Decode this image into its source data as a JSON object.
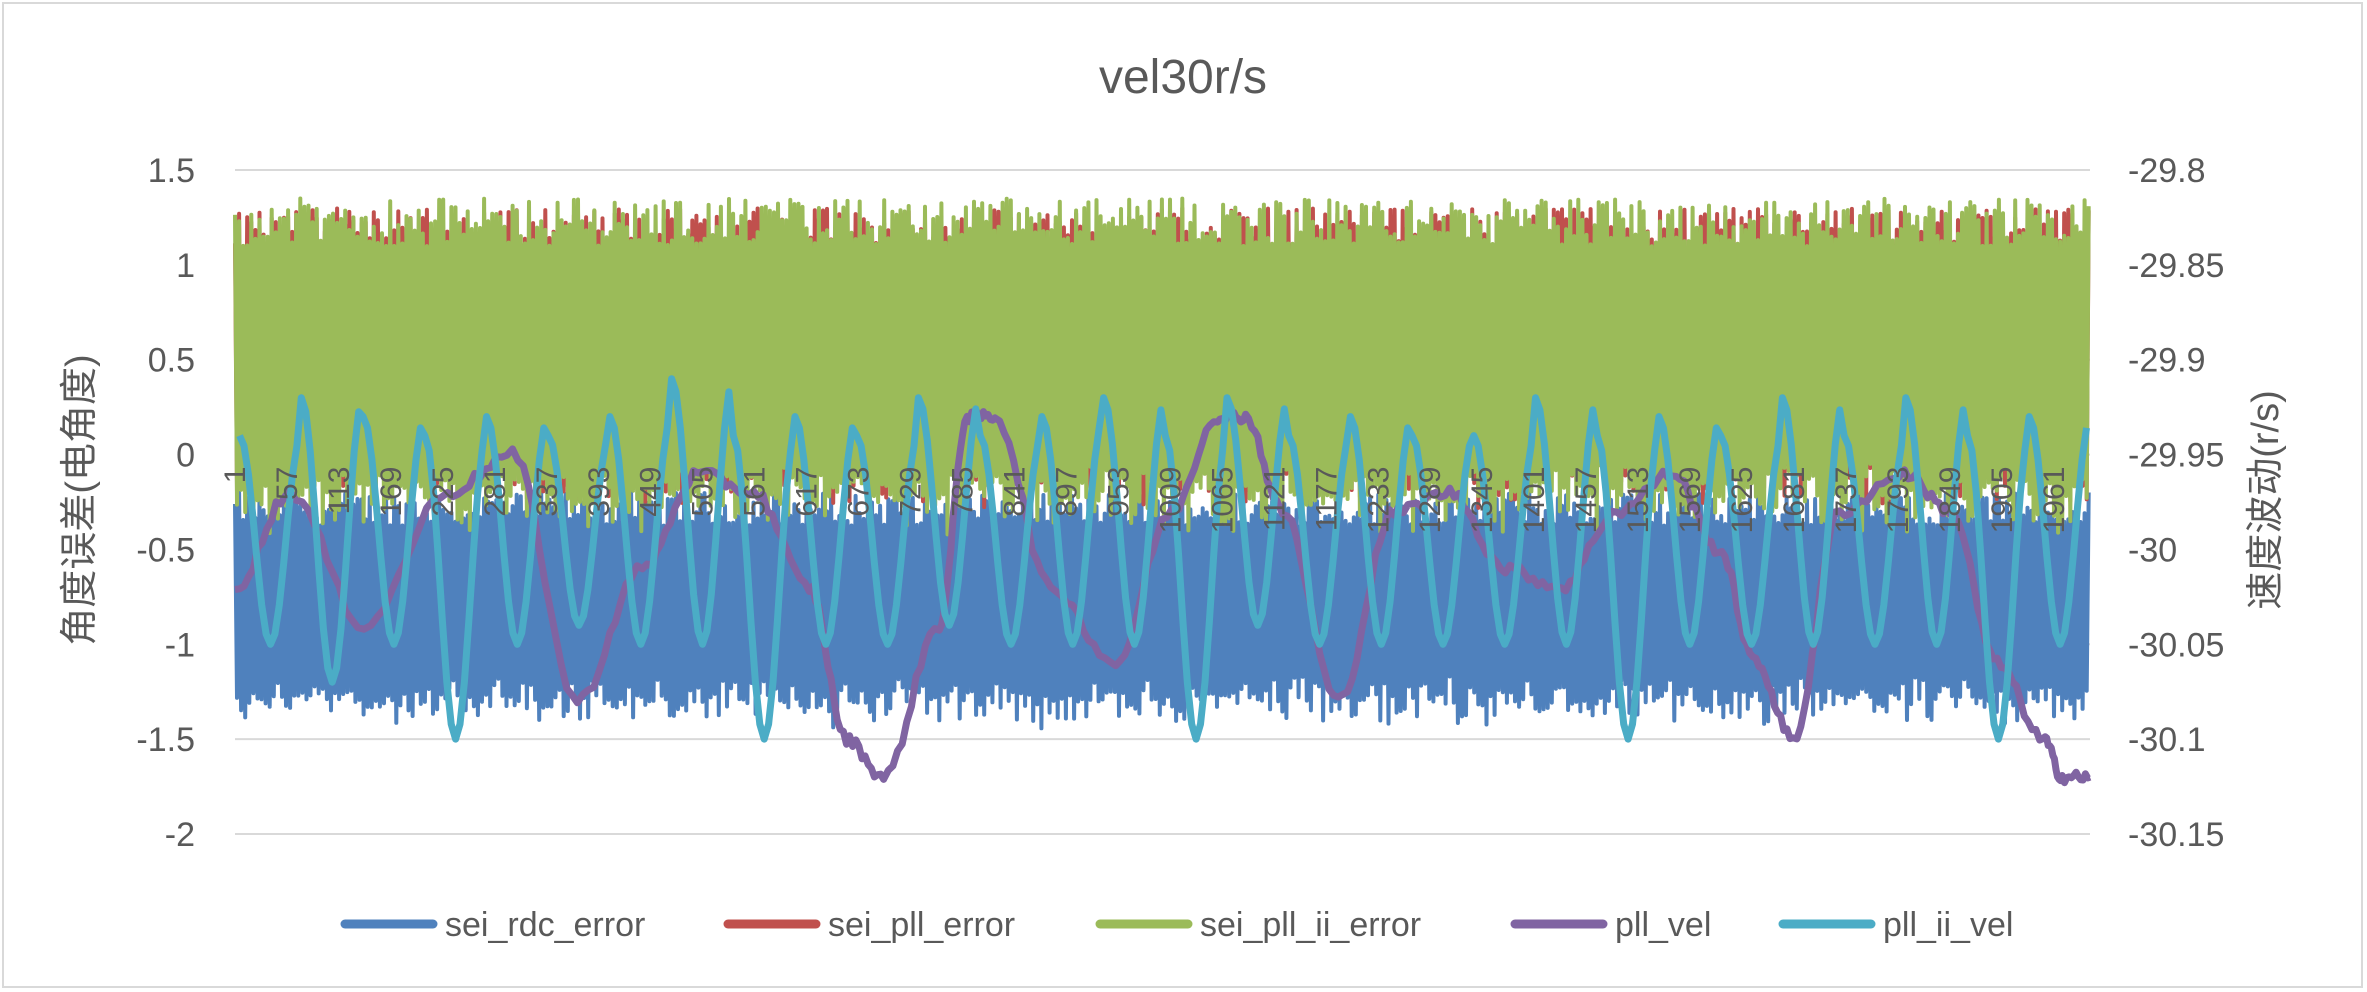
{
  "chart_data": {
    "type": "line",
    "title": "vel30r/s",
    "ylabel": "角度误差(电角度)",
    "y2label": "速度波动(r/s)",
    "ylim": [
      -2,
      1.5
    ],
    "y2lim": [
      -30.15,
      -29.8
    ],
    "yticks": [
      "1.5",
      "1",
      "0.5",
      "0",
      "-0.5",
      "-1",
      "-1.5",
      "-2"
    ],
    "y2ticks": [
      "-29.8",
      "-29.85",
      "-29.9",
      "-29.95",
      "-30",
      "-30.05",
      "-30.1",
      "-30.15"
    ],
    "xlim": [
      1,
      2000
    ],
    "xticks": [
      "1",
      "57",
      "113",
      "169",
      "225",
      "281",
      "337",
      "393",
      "449",
      "505",
      "561",
      "617",
      "673",
      "729",
      "785",
      "841",
      "897",
      "953",
      "1009",
      "1065",
      "1121",
      "1177",
      "1233",
      "1289",
      "1345",
      "1401",
      "1457",
      "1513",
      "1569",
      "1625",
      "1681",
      "1737",
      "1793",
      "1849",
      "1905",
      "1961"
    ],
    "grid": true,
    "legend_position": "bottom",
    "series": [
      {
        "name": "sei_rdc_error",
        "axis": "left",
        "color": "#4f81bd",
        "style": "band",
        "range": [
          -1.45,
          -0.2
        ]
      },
      {
        "name": "sei_pll_error",
        "axis": "left",
        "color": "#c0504d",
        "style": "band",
        "range": [
          -0.3,
          1.3
        ]
      },
      {
        "name": "sei_pll_ii_error",
        "axis": "left",
        "color": "#9bbb59",
        "style": "band",
        "range": [
          -0.45,
          1.35
        ]
      },
      {
        "name": "pll_vel",
        "axis": "right",
        "color": "#8064a2",
        "x": [
          1,
          60,
          140,
          230,
          300,
          370,
          440,
          500,
          560,
          620,
          660,
          700,
          760,
          790,
          820,
          880,
          950,
          1010,
          1060,
          1090,
          1130,
          1190,
          1250,
          1310,
          1370,
          1430,
          1490,
          1550,
          1600,
          1640,
          1680,
          1730,
          1800,
          1850,
          1900,
          1950,
          1970,
          2000
        ],
        "values": [
          -30.02,
          -29.97,
          -30.04,
          -29.97,
          -29.95,
          -30.08,
          -30.01,
          -29.96,
          -29.97,
          -30.02,
          -30.1,
          -30.12,
          -30.04,
          -29.93,
          -29.93,
          -30.02,
          -30.06,
          -29.98,
          -29.93,
          -29.93,
          -29.98,
          -30.08,
          -29.98,
          -29.97,
          -30.01,
          -30.02,
          -29.98,
          -29.96,
          -30.0,
          -30.06,
          -30.1,
          -29.98,
          -29.96,
          -29.98,
          -30.06,
          -30.1,
          -30.12,
          -30.12
        ]
      },
      {
        "name": "pll_ii_vel",
        "axis": "right",
        "color": "#4bacc6",
        "period": 66.5,
        "phase": 5,
        "valley_pattern": [
          -30.05,
          -30.07,
          -30.05,
          -30.1,
          -30.05,
          -30.04,
          -30.05,
          -30.05,
          -30.1,
          -30.05,
          -30.05,
          -30.04,
          -30.05,
          -30.05,
          -30.05,
          -30.1,
          -30.04,
          -30.05,
          -30.05,
          -30.05,
          -30.05,
          -30.05,
          -30.1,
          -30.05,
          -30.05,
          -30.05,
          -30.05,
          -30.05,
          -30.1,
          -30.05
        ],
        "peak_pattern": [
          -29.94,
          -29.92,
          -29.93,
          -29.94,
          -29.93,
          -29.94,
          -29.93,
          -29.91,
          -29.94,
          -29.93,
          -29.94,
          -29.92,
          -29.94,
          -29.93,
          -29.92,
          -29.94,
          -29.92,
          -29.94,
          -29.93,
          -29.94,
          -29.94,
          -29.92,
          -29.94,
          -29.93,
          -29.94,
          -29.92,
          -29.94,
          -29.92,
          -29.94,
          -29.93
        ]
      }
    ]
  }
}
